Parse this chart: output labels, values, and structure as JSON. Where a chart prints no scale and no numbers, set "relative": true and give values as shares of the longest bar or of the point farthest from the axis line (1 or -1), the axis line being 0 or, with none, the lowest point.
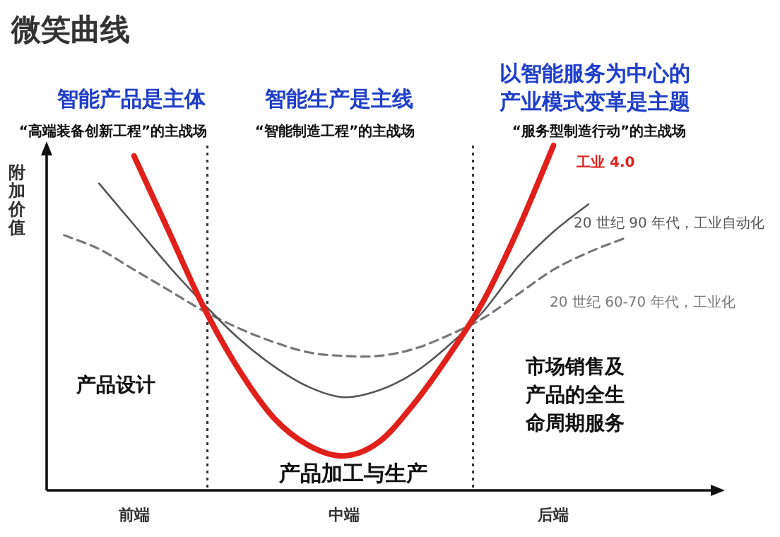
{
  "chart_data": {
    "type": "line",
    "relative": true,
    "title": "微笑曲线",
    "ylabel": "附加价值",
    "categories": [
      null,
      null,
      "前端",
      null,
      null,
      null,
      null,
      null,
      "中端",
      null,
      null,
      null,
      null,
      null,
      "后端",
      null,
      null
    ],
    "series": [
      {
        "name": "工业 4.0",
        "color": "#e0201a",
        "values": [
          null,
          null,
          0.97,
          0.75,
          0.53,
          0.35,
          0.21,
          0.13,
          0.1,
          0.14,
          0.25,
          0.39,
          0.55,
          0.76,
          1.0,
          null,
          null
        ]
      },
      {
        "name": "20 世纪 90 年代，工业自动化",
        "color": "#555555",
        "values": [
          null,
          0.89,
          0.77,
          0.65,
          0.54,
          0.44,
          0.36,
          0.3,
          0.27,
          0.29,
          0.34,
          0.42,
          0.52,
          0.65,
          0.75,
          0.83,
          null
        ]
      },
      {
        "name": "20 世纪 60-70 年代，工业化",
        "color": "#777777",
        "line_style": "dashed",
        "values": [
          0.74,
          0.7,
          0.64,
          0.58,
          0.52,
          0.47,
          0.43,
          0.4,
          0.39,
          0.39,
          0.41,
          0.45,
          0.5,
          0.57,
          0.64,
          0.69,
          0.73
        ]
      }
    ],
    "annotations": [
      "智能产品是主体",
      "“高端装备创新工程”的主战场",
      "智能生产是主线",
      "“智能制造工程”的主战场",
      "以智能服务为中心的",
      "产业模式变革是主题",
      "“服务型制造行动”的主战场",
      "产品设计",
      "产品加工与生产",
      "市场销售及",
      "产品的全生",
      "命周期服务"
    ]
  }
}
